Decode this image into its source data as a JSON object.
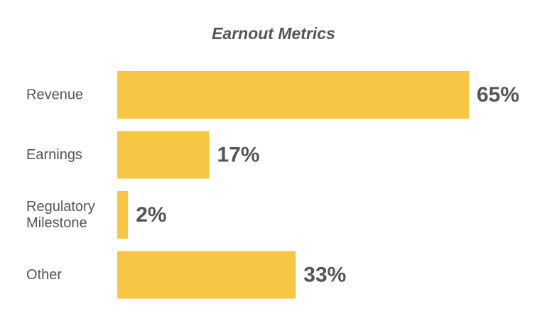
{
  "chart_data": {
    "type": "bar",
    "orientation": "horizontal",
    "title": "Earnout Metrics",
    "categories": [
      [
        "Revenue"
      ],
      [
        "Earnings"
      ],
      [
        "Regulatory",
        "Milestone"
      ],
      [
        "Other"
      ]
    ],
    "values": [
      65,
      17,
      2,
      33
    ],
    "value_labels": [
      "65%",
      "17%",
      "2%",
      "33%"
    ],
    "xlim": [
      0,
      65
    ],
    "grid": false,
    "legend": "none",
    "colors": {
      "bar": "#F7C645",
      "text": "#555555",
      "background": "#FFFFFF"
    }
  }
}
